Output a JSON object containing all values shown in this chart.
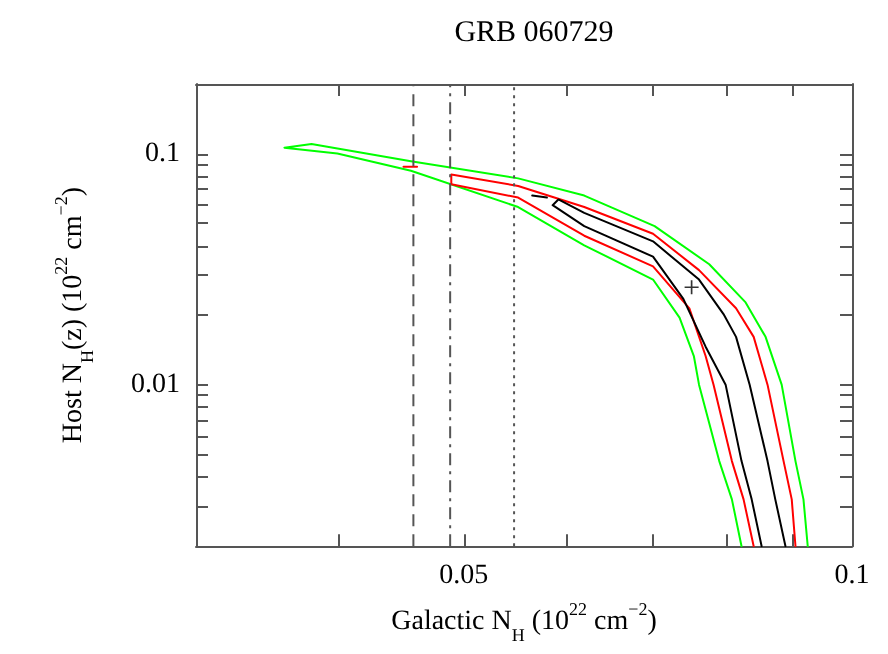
{
  "chart_data": {
    "type": "line",
    "title": "GRB 060729",
    "xlabel": "Galactic N$_{H}$ (10$^{22}$ cm$^{−2}$)",
    "ylabel": "Host N$_{H}$(z) (10$^{22}$ cm$^{−2}$)",
    "log": "xy",
    "grid": false,
    "marker": "none",
    "line_style": "solid",
    "xlim": [
      0.031,
      0.1
    ],
    "xticks": [
      {
        "value": 0.04,
        "label": null
      },
      0.05,
      {
        "value": 0.06,
        "label": null
      },
      {
        "value": 0.07,
        "label": null
      },
      {
        "value": 0.08,
        "label": null
      },
      {
        "value": 0.09,
        "label": null
      },
      0.1
    ],
    "ylim": [
      0.002,
      0.2
    ],
    "yticks": [
      {
        "value": 0.002,
        "label": null
      },
      {
        "value": 0.003,
        "label": null
      },
      {
        "value": 0.004,
        "label": null
      },
      {
        "value": 0.005,
        "label": null
      },
      {
        "value": 0.006,
        "label": null
      },
      {
        "value": 0.007,
        "label": null
      },
      {
        "value": 0.008,
        "label": null
      },
      {
        "value": 0.009,
        "label": null
      },
      0.01,
      {
        "value": 0.02,
        "label": null
      },
      {
        "value": 0.03,
        "label": null
      },
      {
        "value": 0.04,
        "label": null
      },
      {
        "value": 0.05,
        "label": null
      },
      {
        "value": 0.06,
        "label": null
      },
      {
        "value": 0.07,
        "label": null
      },
      {
        "value": 0.08,
        "label": null
      },
      {
        "value": 0.09,
        "label": null
      },
      0.1,
      {
        "value": 0.2,
        "label": null
      }
    ],
    "ref_lines": [
      {
        "axis": "x",
        "value": 0.0457,
        "color": "#555555",
        "line_style": "dashed"
      },
      {
        "axis": "x",
        "value": 0.0488,
        "color": "#555555",
        "line_style": "dashdot"
      },
      {
        "axis": "x",
        "value": 0.0547,
        "color": "#555555",
        "line_style": "dotted"
      }
    ],
    "series": [
      {
        "color": "#00ff00",
        "x": [
          0.0924,
          0.0917,
          0.0904,
          0.0882,
          0.0857,
          0.0827,
          0.0775,
          0.0703,
          0.062,
          0.0551,
          0.0455,
          0.0381,
          0.0363,
          0.0399,
          0.0455,
          0.0551,
          0.062,
          0.0701,
          0.0735,
          0.0754,
          0.0761,
          0.0789,
          0.0807,
          0.0821
        ],
        "values": [
          0.002,
          0.00319,
          0.00467,
          0.01,
          0.0161,
          0.0227,
          0.0332,
          0.0485,
          0.0658,
          0.0781,
          0.0927,
          0.11,
          0.106,
          0.1,
          0.0843,
          0.0587,
          0.0401,
          0.0285,
          0.0195,
          0.0133,
          0.01,
          0.00467,
          0.00319,
          0.002
        ]
      },
      {
        "color": "#ff0000",
        "x": [
          0.0904,
          0.0898,
          0.0885,
          0.086,
          0.0839,
          0.0813,
          0.0761,
          0.0701,
          0.062,
          0.0551,
          0.0489,
          0.0489,
          0.0551,
          0.062,
          0.0701,
          0.0748,
          0.077,
          0.0781,
          0.0807,
          0.0824,
          0.0839,
          null,
          0.0449,
          0.046
        ],
        "values": [
          0.002,
          0.00319,
          0.00467,
          0.01,
          0.0161,
          0.0214,
          0.0313,
          0.045,
          0.0587,
          0.0724,
          0.0811,
          0.0737,
          0.0645,
          0.0441,
          0.0325,
          0.0214,
          0.0133,
          0.01,
          0.00467,
          0.00319,
          0.002,
          null,
          0.0876,
          0.0876
        ]
      },
      {
        "color": "#000000",
        "x": [
          0.0888,
          0.0872,
          0.086,
          0.0833,
          0.0813,
          0.0795,
          0.0761,
          0.0701,
          0.062,
          0.0592,
          0.0586,
          0.062,
          0.0701,
          0.074,
          0.077,
          0.0798,
          0.0821,
          0.0836,
          0.0851,
          null,
          0.0565,
          0.058
        ],
        "values": [
          0.002,
          0.00319,
          0.00467,
          0.01,
          0.0161,
          0.0202,
          0.0285,
          0.0417,
          0.0554,
          0.0633,
          0.0598,
          0.0485,
          0.0358,
          0.0235,
          0.0146,
          0.01,
          0.00467,
          0.00319,
          0.002,
          null,
          0.0658,
          0.0645
        ]
      },
      {
        "type": "scatter",
        "marker": "cross",
        "color": "#000000",
        "x": [
          0.0751
        ],
        "values": [
          0.0264
        ]
      }
    ]
  }
}
